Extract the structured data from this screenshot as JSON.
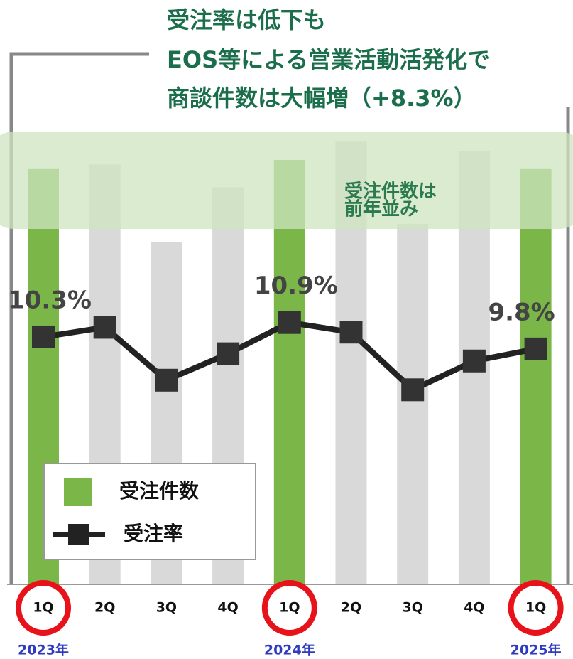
{
  "chart_data": {
    "type": "bar_line",
    "title": [
      "受注率は低下も",
      "EOS等による営業活動活発化で",
      "商談件数は大幅増（+8.3%）"
    ],
    "annotation": [
      "受注件数は",
      "前年並み"
    ],
    "categories": [
      "1Q",
      "2Q",
      "3Q",
      "4Q",
      "1Q",
      "2Q",
      "3Q",
      "4Q",
      "1Q"
    ],
    "years": [
      "2023年",
      null,
      null,
      null,
      "2024年",
      null,
      null,
      null,
      "2025年"
    ],
    "series": [
      {
        "name": "受注件数",
        "color": "#7ab648",
        "colors": [
          "#7ab648",
          "#d9d9d9",
          "#d9d9d9",
          "#d9d9d9",
          "#7ab648",
          "#d9d9d9",
          "#d9d9d9",
          "#d9d9d9",
          "#7ab648"
        ],
        "values": [
          91,
          92,
          75,
          87,
          93,
          97,
          79,
          95,
          91
        ]
      },
      {
        "name": "受注率",
        "color": "#222222",
        "axis": "y2",
        "values": [
          10.3,
          10.7,
          8.5,
          9.6,
          10.9,
          10.5,
          8.1,
          9.3,
          9.8
        ],
        "value_labels": [
          "10.3%",
          null,
          null,
          null,
          "10.9%",
          null,
          null,
          null,
          "9.8%"
        ]
      }
    ],
    "ylim": [
      0,
      100
    ],
    "y2lim": [
      0,
      19
    ]
  }
}
